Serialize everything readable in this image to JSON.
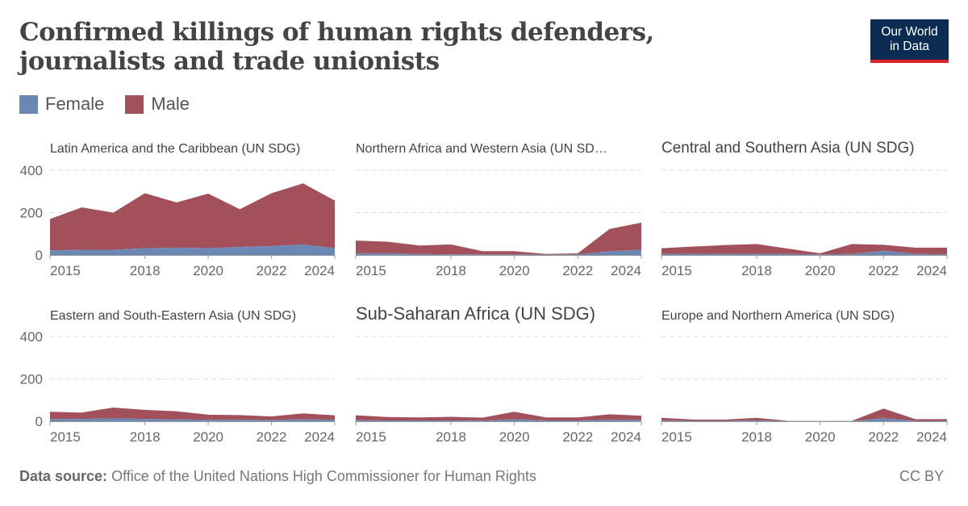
{
  "title": "Confirmed killings of human rights defenders, journalists and trade unionists",
  "logo": {
    "line1": "Our World",
    "line2": "in Data"
  },
  "legend": [
    {
      "label": "Female",
      "color": "#6d87b4"
    },
    {
      "label": "Male",
      "color": "#a2515b"
    }
  ],
  "footer": {
    "source_label": "Data source:",
    "source_text": "Office of the United Nations High Commissioner for Human Rights"
  },
  "license": "CC BY",
  "chart_data": {
    "type": "area",
    "stacked": true,
    "x": [
      2015,
      2016,
      2017,
      2018,
      2019,
      2020,
      2021,
      2022,
      2023,
      2024
    ],
    "ylim": [
      0,
      400
    ],
    "yticks": [
      "0",
      "200",
      "400"
    ],
    "xticks": [
      "2015",
      "2018",
      "2020",
      "2022",
      "2024"
    ],
    "grid": true,
    "legend_position": "top-left",
    "series_colors": {
      "Female": "#6d87b4",
      "Male": "#a2515b"
    },
    "panels": [
      {
        "title": "Latin America and the Caribbean (UN SDG)",
        "female": [
          22,
          25,
          25,
          32,
          35,
          32,
          38,
          42,
          50,
          32
        ],
        "male": [
          148,
          200,
          175,
          260,
          213,
          258,
          178,
          250,
          288,
          225
        ]
      },
      {
        "title": "Northern Africa and Western Asia (UN SD…",
        "female": [
          8,
          8,
          5,
          3,
          3,
          3,
          2,
          3,
          18,
          25
        ],
        "male": [
          60,
          55,
          40,
          47,
          15,
          15,
          3,
          5,
          105,
          128
        ]
      },
      {
        "title": "Central and Southern Asia (UN SDG)",
        "female": [
          5,
          6,
          5,
          6,
          5,
          3,
          5,
          20,
          5,
          3
        ],
        "male": [
          27,
          34,
          42,
          46,
          25,
          5,
          47,
          28,
          30,
          32
        ]
      },
      {
        "title": "Eastern and South-Eastern Asia (UN SDG)",
        "female": [
          10,
          11,
          14,
          11,
          9,
          7,
          7,
          6,
          9,
          7
        ],
        "male": [
          35,
          30,
          51,
          43,
          38,
          24,
          22,
          17,
          28,
          21
        ]
      },
      {
        "title": "Sub-Saharan Africa (UN SDG)",
        "female": [
          5,
          4,
          4,
          4,
          3,
          10,
          4,
          4,
          7,
          6
        ],
        "male": [
          23,
          16,
          14,
          17,
          14,
          35,
          14,
          14,
          26,
          20
        ]
      },
      {
        "title": "Europe and Northern America (UN SDG)",
        "female": [
          3,
          2,
          2,
          4,
          1,
          1,
          1,
          15,
          2,
          2
        ],
        "male": [
          13,
          6,
          6,
          12,
          1,
          1,
          1,
          45,
          8,
          8
        ]
      }
    ]
  }
}
